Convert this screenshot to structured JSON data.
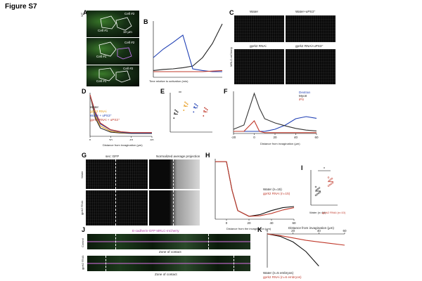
{
  "figure_title": "Figure S7",
  "panels": {
    "A": {
      "label": "A",
      "rows": [
        "WT",
        "Gα₂+fAB-Gα",
        "uPS3⁺"
      ],
      "cells": [
        "Cell #2",
        "Cell #1",
        "Cell #2",
        "Cell #1",
        "Cell #2",
        "Cell #1"
      ],
      "scale": "10 µm"
    },
    "B": {
      "label": "B",
      "ylabel": "Myoll mean intensity (A.U.)",
      "xlabel": "Time relative to activation (min)",
      "legend": [
        "WT",
        "uPS3⁺",
        "Gα₂+fAB-Gα₂",
        "n=15 cells, 4embryos"
      ]
    },
    "C": {
      "label": "C",
      "panel_titles": [
        "Water",
        "Water+uPS3⁺",
        "gprk2 RNAi",
        "gprk2 RNAi+uPS3⁺"
      ],
      "side_label": "MRLC-mCherry",
      "scale": "10 µm"
    },
    "D": {
      "label": "D",
      "ylabel": "Normalized mean intensity",
      "xlabel": "Distance from invagination (µm)",
      "legend": [
        "Water",
        "gprk2 RNAi",
        "Water + uPS3⁺",
        "gprk2 RNAi + uPS3⁺"
      ],
      "xticks": [
        "0",
        "20",
        "40",
        "60"
      ]
    },
    "E": {
      "label": "E",
      "ylabel": "Length scale λ (µm)",
      "sig": [
        "**",
        "**",
        "*"
      ]
    },
    "F": {
      "label": "F",
      "ylabel": "MyoII & iPS mean intensity (A.U.)",
      "ylabel_right": "Dextran mean intensity (A.U.)",
      "xlabel": "Distance from invagination (µm)",
      "legend": [
        "Dextran",
        "MyoII",
        "iPS"
      ],
      "xticks": [
        "-20",
        "0",
        "20",
        "40",
        "60"
      ]
    },
    "G": {
      "label": "G",
      "titles": [
        "sec::GFP",
        "Normalized average projection"
      ],
      "rows": [
        "Water",
        "gprk2 RNAi"
      ],
      "scale": "10 µm"
    },
    "H": {
      "label": "H",
      "ylabel": "Normalized sec::GFP intensity (A.U.)",
      "xlabel": "Distance from the invagination (µm)",
      "legend": [
        "Water (n=15)",
        "gprk2 RNAi (n=15)"
      ],
      "xticks": [
        "0",
        "20",
        "40",
        "60"
      ]
    },
    "I": {
      "label": "I",
      "ylabel": "Range of contact (µm)",
      "xlabels": [
        "Water\n(n=10)",
        "gprk2 RNAi\n(n=10)"
      ],
      "sig": "*"
    },
    "J": {
      "label": "J",
      "title": "E-cadherin-GFP MRLC-mCherry",
      "rows": [
        "Control",
        "gprk2 RNAi"
      ],
      "zone": "Zone of contact",
      "scale": "5 µm"
    },
    "K": {
      "label": "K",
      "title": "Distance from invagination (µm)",
      "ylabel": "Distance of E-cad junction from the V-Y plane (µm)",
      "legend": [
        "Water (n=5 embryos)",
        "gprk2 RNAi (n=6 embryos)"
      ],
      "xticks": [
        "0",
        "20",
        "40",
        "60"
      ]
    }
  },
  "chart_data": [
    {
      "panel": "B",
      "type": "line",
      "x": [
        -4,
        -3,
        -2,
        -1,
        0,
        1,
        2,
        3
      ],
      "series": [
        {
          "name": "WT",
          "color": "#222222",
          "values": [
            0.12,
            0.14,
            0.15,
            0.17,
            0.2,
            0.35,
            0.6,
            0.95
          ]
        },
        {
          "name": "uPS3⁺",
          "color": "#1f3fb4",
          "values": [
            0.35,
            0.5,
            0.62,
            0.75,
            0.15,
            0.12,
            0.1,
            0.1
          ]
        },
        {
          "name": "Gα₂+fAB-Gα₂",
          "color": "#c0392b",
          "values": [
            0.1,
            0.1,
            0.1,
            0.1,
            0.1,
            0.1,
            0.11,
            0.12
          ]
        }
      ],
      "xlabel": "Time relative to activation (min)",
      "ylabel": "Myoll mean intensity (A.U.)"
    },
    {
      "panel": "D",
      "type": "line",
      "x": [
        0,
        5,
        10,
        20,
        30,
        40,
        50,
        60
      ],
      "series": [
        {
          "name": "Water",
          "color": "#222222",
          "values": [
            1.0,
            0.45,
            0.2,
            0.1,
            0.08,
            0.07,
            0.07,
            0.07
          ]
        },
        {
          "name": "gprk2 RNAi",
          "color": "#e69a1a",
          "values": [
            1.0,
            0.5,
            0.25,
            0.12,
            0.09,
            0.08,
            0.08,
            0.08
          ]
        },
        {
          "name": "Water + uPS3⁺",
          "color": "#1f3fb4",
          "values": [
            1.0,
            0.55,
            0.3,
            0.15,
            0.1,
            0.08,
            0.08,
            0.08
          ]
        },
        {
          "name": "gprk2 RNAi + uPS3⁺",
          "color": "#c0392b",
          "values": [
            1.0,
            0.6,
            0.32,
            0.16,
            0.11,
            0.09,
            0.09,
            0.09
          ]
        }
      ]
    },
    {
      "panel": "E",
      "type": "scatter",
      "categories": [
        "Water",
        "gprk2 RNAi",
        "Water+uPS3⁺",
        "gprk2 RNAi+uPS3⁺"
      ],
      "colors": [
        "#222222",
        "#e69a1a",
        "#1f3fb4",
        "#c0392b"
      ],
      "values": [
        3.2,
        4.6,
        4.3,
        3.6
      ]
    },
    {
      "panel": "F",
      "type": "line",
      "x": [
        -20,
        -10,
        0,
        5,
        10,
        20,
        30,
        40,
        50,
        60
      ],
      "series": [
        {
          "name": "Dextran",
          "color": "#1f3fb4",
          "values": [
            0.05,
            0.05,
            0.05,
            0.05,
            0.05,
            0.1,
            0.2,
            0.35,
            0.4,
            0.36
          ]
        },
        {
          "name": "MyoII",
          "color": "#333333",
          "values": [
            0.1,
            0.2,
            0.95,
            0.6,
            0.35,
            0.25,
            0.18,
            0.12,
            0.08,
            0.06
          ]
        },
        {
          "name": "iPS",
          "color": "#c0392b",
          "values": [
            0.05,
            0.05,
            0.3,
            0.05,
            0.02,
            0.02,
            0.02,
            0.02,
            0.02,
            0.02
          ]
        }
      ]
    },
    {
      "panel": "H",
      "type": "line",
      "x": [
        -10,
        0,
        5,
        10,
        20,
        30,
        40,
        50,
        60
      ],
      "series": [
        {
          "name": "Water (n=15)",
          "color": "#111111",
          "values": [
            1.0,
            1.0,
            0.5,
            0.15,
            0.05,
            0.08,
            0.15,
            0.2,
            0.22
          ]
        },
        {
          "name": "gprk2 RNAi (n=15)",
          "color": "#c0392b",
          "values": [
            1.0,
            1.0,
            0.5,
            0.15,
            0.05,
            0.06,
            0.1,
            0.16,
            0.2
          ]
        }
      ]
    },
    {
      "panel": "I",
      "type": "scatter",
      "categories": [
        "Water",
        "gprk2 RNAi"
      ],
      "colors": [
        "#222222",
        "#c0392b"
      ],
      "values": [
        32,
        40
      ]
    },
    {
      "panel": "K",
      "type": "line",
      "x": [
        0,
        10,
        20,
        30,
        40,
        50,
        60
      ],
      "series": [
        {
          "name": "Water (n=5 embryos)",
          "color": "#111111",
          "values": [
            0,
            -0.3,
            -1.0,
            -2.2,
            -4.0,
            null,
            null
          ]
        },
        {
          "name": "gprk2 RNAi (n=6 embryos)",
          "color": "#c0392b",
          "values": [
            0,
            -0.2,
            -0.5,
            -0.8,
            -1.0,
            -1.2,
            -1.4
          ]
        }
      ]
    }
  ]
}
